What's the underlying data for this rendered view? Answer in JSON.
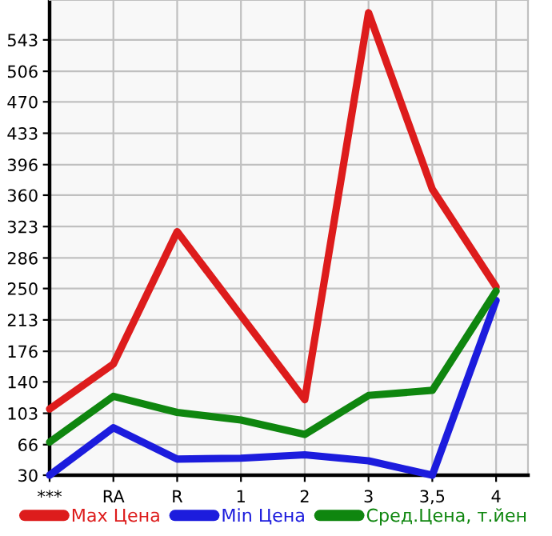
{
  "chart_data": {
    "type": "line",
    "categories": [
      "***",
      "RA",
      "R",
      "1",
      "2",
      "3",
      "3,5",
      "4"
    ],
    "series": [
      {
        "name": "Max Цена",
        "color": "#dd1c1c",
        "values": [
          108,
          161,
          317,
          218,
          119,
          575,
          367,
          252
        ]
      },
      {
        "name": "Min Цена",
        "color": "#1c1cdd",
        "values": [
          30,
          86,
          49,
          50,
          54,
          47,
          30,
          236
        ]
      },
      {
        "name": "Сред.Цена, т.йен",
        "color": "#0f860f",
        "values": [
          69,
          123,
          104,
          95,
          78,
          124,
          130,
          247
        ]
      }
    ],
    "ylim": [
      30,
      590
    ],
    "yticks": [
      30,
      66,
      103,
      140,
      176,
      213,
      250,
      286,
      323,
      360,
      396,
      433,
      470,
      506,
      543
    ],
    "grid": true,
    "legend": "bottom",
    "marker": "none",
    "line_style": "solid"
  }
}
